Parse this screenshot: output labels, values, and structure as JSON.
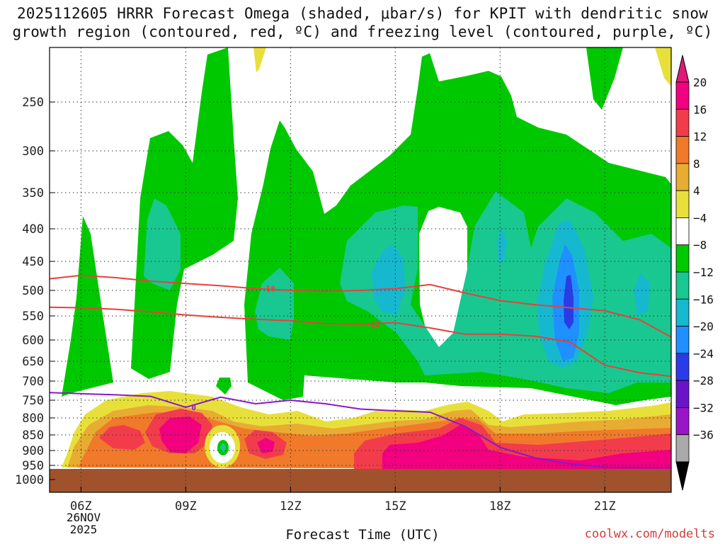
{
  "chart_data": {
    "type": "heatmap",
    "title_line1": "2025112605 HRRR Forecast Omega (shaded, μbar/s) for KPIT with dendritic snow",
    "title_line2": "growth region (contoured, red, ºC) and freezing level (contoured, purple, ºC)",
    "xlabel": "Forecast Time (UTC)",
    "credit": "coolwx.com/modelts",
    "x_ticks": [
      {
        "hour": 6,
        "label": "06Z"
      },
      {
        "hour": 9,
        "label": "09Z"
      },
      {
        "hour": 12,
        "label": "12Z"
      },
      {
        "hour": 15,
        "label": "15Z"
      },
      {
        "hour": 18,
        "label": "18Z"
      },
      {
        "hour": 21,
        "label": "21Z"
      }
    ],
    "date_label": {
      "day": "26NOV",
      "year": "2025"
    },
    "x_range": [
      5.1,
      22.9
    ],
    "y_ticks": [
      250,
      300,
      350,
      400,
      450,
      500,
      550,
      600,
      650,
      700,
      750,
      800,
      850,
      900,
      950,
      1000
    ],
    "y_range_hpa": [
      1000,
      200
    ],
    "colorbar": {
      "labels": [
        "20",
        "16",
        "12",
        "8",
        "4",
        "−4",
        "−8",
        "−12",
        "−16",
        "−20",
        "−24",
        "−28",
        "−32",
        "−36"
      ],
      "colors": [
        "#f2007f",
        "#f23c4c",
        "#f07a2a",
        "#e8ac33",
        "#e8e03a",
        "#ffffff",
        "#00c800",
        "#18c890",
        "#16b8d0",
        "#1e90ff",
        "#2a3ce8",
        "#6a14c8",
        "#9a14c8",
        "#aaaaaa"
      ],
      "top_color": "#e01878",
      "bottom_color": "#000000"
    },
    "regions": [
      {
        "name": "green-main",
        "color": "#00c800",
        "value_range": "-8 to -4"
      },
      {
        "name": "teal",
        "color": "#18c890",
        "value_range": "-12 to -8"
      },
      {
        "name": "cyan",
        "color": "#16b8d0",
        "value_range": "-16 to -12"
      },
      {
        "name": "blue",
        "color": "#1e90ff",
        "value_range": "-20 to -16"
      },
      {
        "name": "deep-blue",
        "color": "#2a3ce8",
        "value_range": "-24 to -20"
      },
      {
        "name": "yellow",
        "color": "#e8e03a",
        "value_range": "4 to 8"
      },
      {
        "name": "gold",
        "color": "#e8ac33",
        "value_range": "8 to 12"
      },
      {
        "name": "orange",
        "color": "#f07a2a",
        "value_range": "12 to 16"
      },
      {
        "name": "red",
        "color": "#f23c4c",
        "value_range": "16 to 20"
      },
      {
        "name": "magenta",
        "color": "#f2007f",
        "value_range": ">20"
      },
      {
        "name": "ground",
        "color": "#a0522d",
        "value_range": "below surface"
      }
    ],
    "contours": [
      {
        "name": "-18C isotherm",
        "label": "-18",
        "color": "#e8403c",
        "points": [
          [
            5.1,
            480
          ],
          [
            6,
            474
          ],
          [
            7,
            478
          ],
          [
            8,
            484
          ],
          [
            9,
            488
          ],
          [
            10,
            492
          ],
          [
            11,
            497
          ],
          [
            12,
            500
          ],
          [
            13,
            502
          ],
          [
            14,
            500
          ],
          [
            15,
            497
          ],
          [
            16,
            490
          ],
          [
            17,
            505
          ],
          [
            18,
            520
          ],
          [
            19,
            528
          ],
          [
            20,
            534
          ],
          [
            21,
            540
          ],
          [
            22,
            558
          ],
          [
            22.9,
            594
          ]
        ]
      },
      {
        "name": "-12C isotherm",
        "label": "-12",
        "color": "#e8403c",
        "points": [
          [
            5.1,
            533
          ],
          [
            6,
            534
          ],
          [
            7,
            537
          ],
          [
            8,
            542
          ],
          [
            9,
            548
          ],
          [
            10,
            553
          ],
          [
            11,
            557
          ],
          [
            12,
            560
          ],
          [
            13,
            566
          ],
          [
            14,
            567
          ],
          [
            15,
            564
          ],
          [
            16,
            575
          ],
          [
            17,
            588
          ],
          [
            18,
            588
          ],
          [
            19,
            592
          ],
          [
            20,
            605
          ],
          [
            21,
            660
          ],
          [
            22,
            679
          ],
          [
            22.9,
            688
          ]
        ]
      },
      {
        "name": "0C freezing level",
        "label": "0",
        "color": "#8a18c8",
        "points": [
          [
            5.1,
            730
          ],
          [
            6,
            733
          ],
          [
            7,
            736
          ],
          [
            8,
            740
          ],
          [
            9,
            770
          ],
          [
            10,
            742
          ],
          [
            11,
            760
          ],
          [
            12,
            750
          ],
          [
            13,
            760
          ],
          [
            14,
            775
          ],
          [
            15,
            780
          ],
          [
            16,
            784
          ],
          [
            17,
            825
          ],
          [
            18,
            890
          ],
          [
            19,
            925
          ],
          [
            20,
            945
          ],
          [
            21,
            957
          ],
          [
            22.9,
            958
          ]
        ]
      }
    ]
  }
}
